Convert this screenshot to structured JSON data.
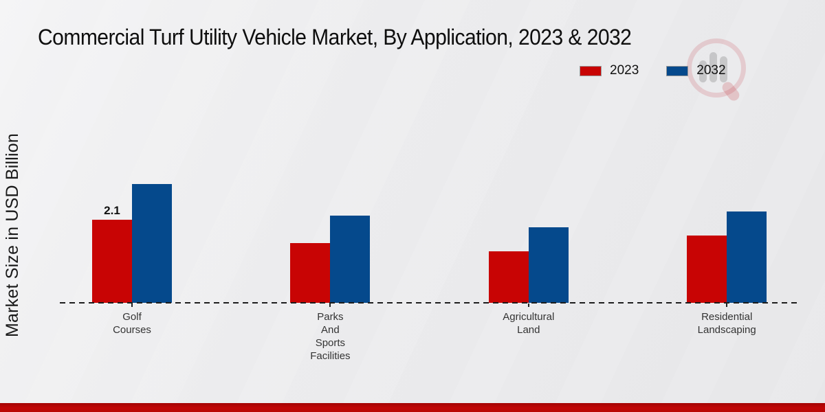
{
  "title": "Commercial Turf Utility Vehicle Market, By Application, 2023 & 2032",
  "ylabel": "Market Size in USD Billion",
  "legend": {
    "items": [
      {
        "label": "2023",
        "color": "#c80404"
      },
      {
        "label": "2032",
        "color": "#05498c"
      }
    ]
  },
  "watermark": {
    "name": "market-research-magnifier-logo",
    "ring_color": "#be2832",
    "bars_color": "#787878"
  },
  "footer": {
    "band_color": "#c10606"
  },
  "chart_data": {
    "type": "bar",
    "title": "Commercial Turf Utility Vehicle Market, By Application, 2023 & 2032",
    "ylabel": "Market Size in USD Billion",
    "categories": [
      "Golf Courses",
      "Parks And Sports Facilities",
      "Agricultural Land",
      "Residential Landscaping"
    ],
    "categories_lines": [
      [
        "Golf",
        "Courses"
      ],
      [
        "Parks",
        "And",
        "Sports",
        "Facilities"
      ],
      [
        "Agricultural",
        "Land"
      ],
      [
        "Residential",
        "Landscaping"
      ]
    ],
    "series": [
      {
        "name": "2023",
        "color": "#c80404",
        "values": [
          2.1,
          1.5,
          1.3,
          1.7
        ]
      },
      {
        "name": "2032",
        "color": "#05498c",
        "values": [
          3.0,
          2.2,
          1.9,
          2.3
        ]
      }
    ],
    "ylim": [
      0,
      3.5
    ],
    "grid": false,
    "legend_position": "top-right",
    "baseline_style": "dashed",
    "data_labels": [
      {
        "series": "2023",
        "category": "Golf Courses",
        "text": "2.1"
      }
    ]
  }
}
